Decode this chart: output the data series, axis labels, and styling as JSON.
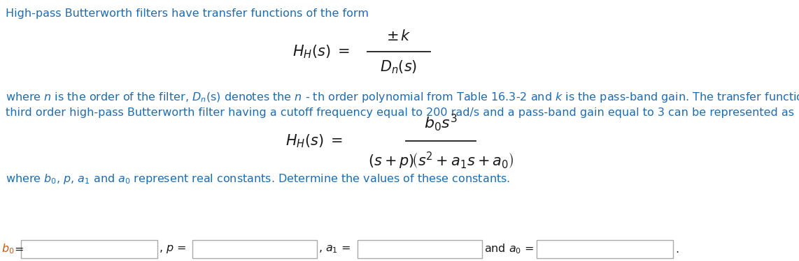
{
  "bg_color": "#ffffff",
  "blue": "#1F6CB0",
  "orange": "#C55A11",
  "black": "#1a1a1a",
  "gray": "#888888",
  "figsize": [
    11.42,
    3.74
  ],
  "dpi": 100,
  "fs_body": 11.5,
  "fs_eq1": 15,
  "fs_eq2": 15,
  "line1": "High-pass Butterworth filters have transfer functions of the form",
  "para1": "where $\\mathit{n}$ is the order of the filter, $\\mathit{D_n}$(s) denotes the $\\mathit{n}$ - th order polynomial from Table 16.3-2 and $\\mathit{k}$ is the pass-band gain. The transfer function of a",
  "para2": "third order high-pass Butterworth filter having a cutoff frequency equal to 200 rad/s and a pass-band gain equal to 3 can be represented as",
  "para3": "where $\\mathit{b_0}$, $\\mathit{p}$, $\\mathit{a_1}$ and $\\mathit{a_0}$ represent real constants. Determine the values of these constants.",
  "eq1_lhs": "$H_H(s) = $",
  "eq1_num": "$\\pm k$",
  "eq1_den": "$D_n(s)$",
  "eq2_lhs": "$H_H(s) = $",
  "eq2_num": "$b_0s^3$",
  "eq2_den": "$(s + p)(s^2 + a_1s + a_0)$",
  "box_edge": "#aaaaaa"
}
